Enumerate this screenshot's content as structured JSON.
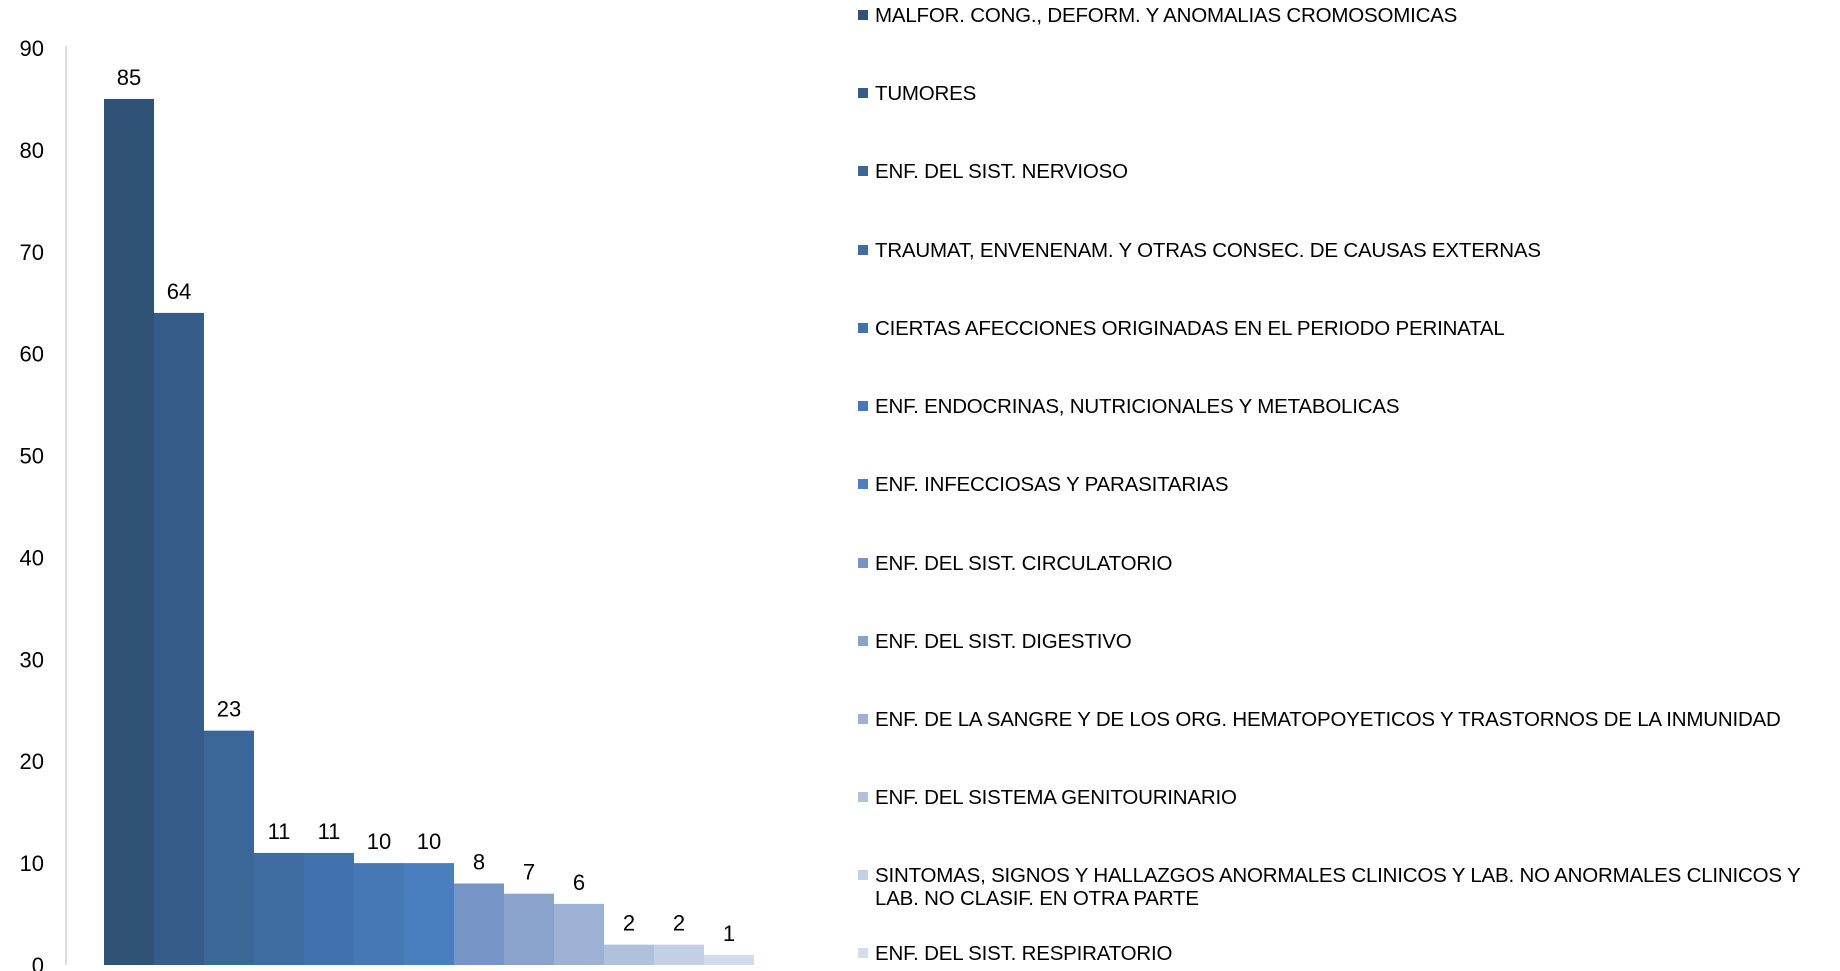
{
  "chart_data": {
    "type": "bar",
    "ylim": [
      0,
      90
    ],
    "yticks": [
      "0",
      "10",
      "20",
      "30",
      "40",
      "50",
      "60",
      "70",
      "80",
      "90"
    ],
    "legend_position": "right",
    "grid": false,
    "categories": [
      "MALFOR. CONG., DEFORM. Y ANOMALIAS CROMOSOMICAS",
      "TUMORES",
      "ENF. DEL SIST. NERVIOSO",
      "TRAUMAT, ENVENENAM. Y OTRAS CONSEC. DE CAUSAS EXTERNAS",
      "CIERTAS AFECCIONES ORIGINADAS EN EL PERIODO PERINATAL",
      "ENF. ENDOCRINAS, NUTRICIONALES Y METABOLICAS",
      "ENF. INFECCIOSAS Y PARASITARIAS",
      "ENF. DEL SIST. CIRCULATORIO",
      "ENF. DEL SIST. DIGESTIVO",
      "ENF. DE LA SANGRE Y DE LOS ORG. HEMATOPOYETICOS Y TRASTORNOS DE LA INMUNIDAD",
      "ENF. DEL SISTEMA GENITOURINARIO",
      "SINTOMAS, SIGNOS Y HALLAZGOS ANORMALES CLINICOS Y LAB. NO ANORMALES CLINICOS Y LAB. NO CLASIF. EN OTRA PARTE",
      "ENF. DEL SIST. RESPIRATORIO"
    ],
    "values": [
      85,
      64,
      23,
      11,
      11,
      10,
      10,
      8,
      7,
      6,
      2,
      2,
      1
    ],
    "data_labels": [
      "85",
      "64",
      "23",
      "11",
      "11",
      "10",
      "10",
      "8",
      "7",
      "6",
      "2",
      "2",
      "1"
    ],
    "colors": [
      "#2f5276",
      "#365d89",
      "#3b6698",
      "#3f6da3",
      "#4272ad",
      "#4678b6",
      "#4a7ebf",
      "#7695c6",
      "#8aa3cd",
      "#9cb1d4",
      "#b1c1dc",
      "#c3cfe4",
      "#d3dcec"
    ]
  }
}
